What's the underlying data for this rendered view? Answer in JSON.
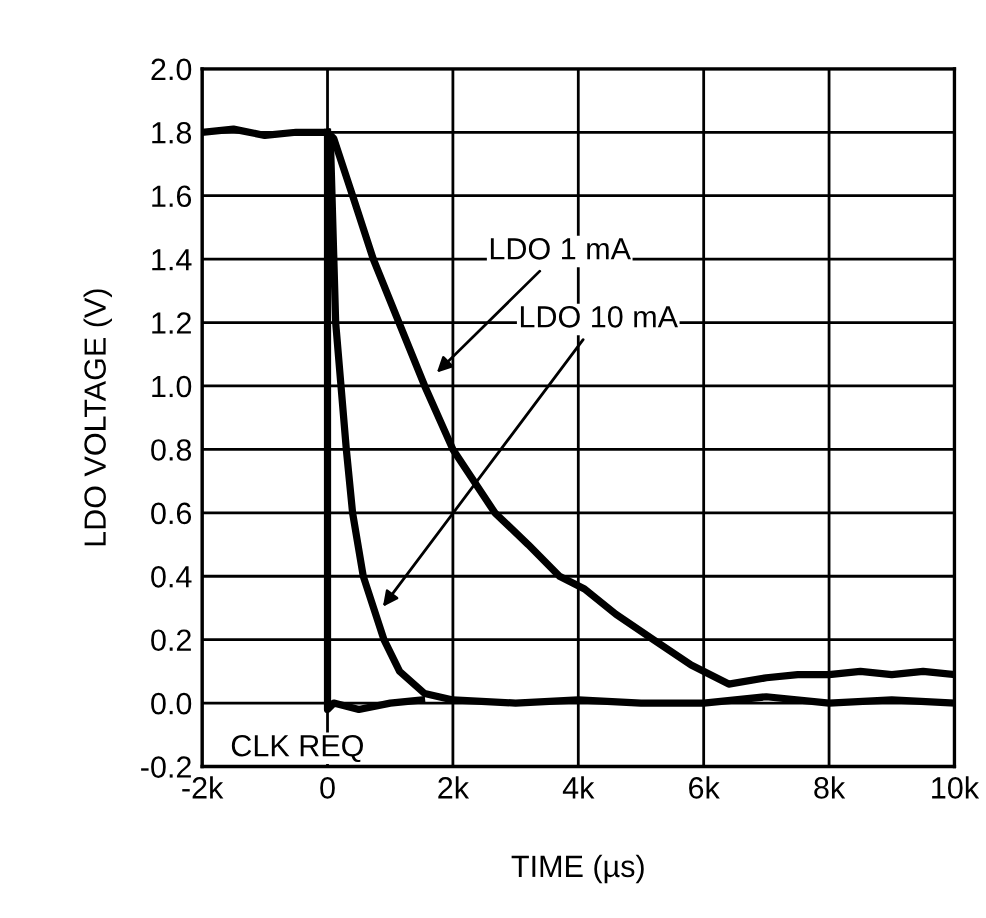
{
  "chart_data": {
    "type": "line",
    "xlabel": "TIME (µs)",
    "ylabel": "LDO VOLTAGE (V)",
    "xlim": [
      -2000,
      10000
    ],
    "ylim": [
      -0.2,
      2.0
    ],
    "xticks": [
      {
        "value": -2000,
        "label": "-2k"
      },
      {
        "value": 0,
        "label": "0"
      },
      {
        "value": 2000,
        "label": "2k"
      },
      {
        "value": 4000,
        "label": "4k"
      },
      {
        "value": 6000,
        "label": "6k"
      },
      {
        "value": 8000,
        "label": "8k"
      },
      {
        "value": 10000,
        "label": "10k"
      }
    ],
    "yticks": [
      -0.2,
      {
        "value": 0,
        "label": "0.0"
      },
      0.2,
      0.4,
      0.6,
      0.8,
      {
        "value": 1,
        "label": "1.0"
      },
      1.2,
      1.4,
      1.6,
      1.8,
      {
        "value": 2,
        "label": "2.0"
      }
    ],
    "grid": true,
    "marker": "none",
    "line_style": "solid",
    "series": [
      {
        "color": "#000000",
        "x": [
          -2000,
          -1500,
          -1000,
          -500,
          0,
          100,
          400,
          730,
          1140,
          1550,
          2000,
          2670,
          3200,
          3700,
          4100,
          4600,
          5200,
          5800,
          6400,
          7000,
          7500,
          8000,
          8500,
          9000,
          9500,
          10000
        ],
        "values": [
          1.8,
          1.81,
          1.79,
          1.8,
          1.8,
          1.78,
          1.6,
          1.4,
          1.2,
          1.0,
          0.8,
          0.6,
          0.5,
          0.4,
          0.36,
          0.28,
          0.2,
          0.12,
          0.06,
          0.08,
          0.09,
          0.09,
          0.1,
          0.09,
          0.1,
          0.09
        ]
      },
      {
        "color": "#000000",
        "x": [
          0,
          50,
          130,
          300,
          400,
          570,
          900,
          1150,
          1550,
          2000,
          3000,
          4000,
          5000,
          6000,
          7000,
          8000,
          9000,
          10000
        ],
        "values": [
          1.8,
          1.75,
          1.2,
          0.8,
          0.6,
          0.4,
          0.2,
          0.1,
          0.03,
          0.01,
          0.0,
          0.01,
          0.0,
          0.0,
          0.02,
          0.0,
          0.01,
          0.0
        ]
      },
      {
        "color": "#000000",
        "x": [
          0,
          0,
          100,
          500,
          1000,
          1500
        ],
        "values": [
          1.8,
          -0.02,
          0.0,
          -0.02,
          0.0,
          0.01
        ]
      }
    ],
    "annotations": [
      {
        "text": "LDO 1 mA",
        "x": 1680,
        "y": 1.03
      },
      {
        "text": "LDO 10 mA",
        "x": 830,
        "y": 0.29
      },
      {
        "text": "CLK REQ",
        "x": 0,
        "y": -0.02
      }
    ]
  }
}
